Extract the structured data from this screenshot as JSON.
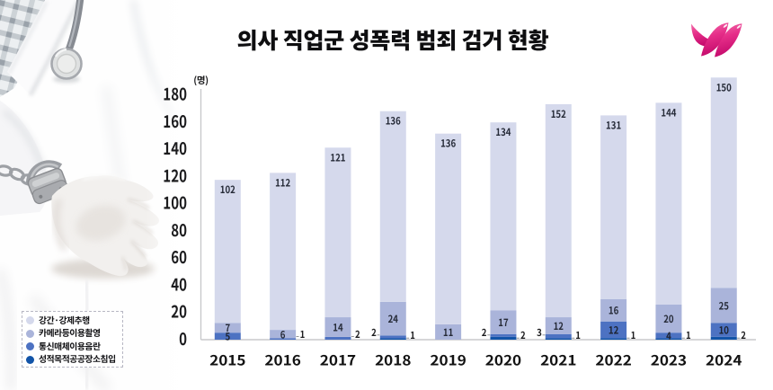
{
  "header": {
    "title": "의사 직업군 성폭력 범죄 검거 현황",
    "logo": {
      "name": "pink-wings-logo",
      "color_top": "#f473ae",
      "color_bottom": "#c9096e"
    }
  },
  "chart_data": {
    "type": "bar",
    "stacked": true,
    "title": "의사 직업군 성폭력 범죄 검거 현황",
    "unit_label": "(명)",
    "xlabel": "",
    "ylabel": "명",
    "ylim": [
      0,
      180
    ],
    "ytick_step": 20,
    "yticks": [
      0,
      20,
      40,
      60,
      80,
      100,
      120,
      140,
      160,
      180
    ],
    "grid": false,
    "legend_position": "bottom-left",
    "categories": [
      "2015",
      "2016",
      "2017",
      "2018",
      "2019",
      "2020",
      "2021",
      "2022",
      "2023",
      "2024"
    ],
    "series": [
      {
        "name": "강간·강제추행",
        "color": "#d5d9ec",
        "values": [
          102,
          112,
          121,
          136,
          136,
          134,
          152,
          131,
          144,
          150
        ]
      },
      {
        "name": "카메라등이용촬영",
        "color": "#aab4da",
        "values": [
          7,
          6,
          14,
          24,
          11,
          17,
          12,
          16,
          20,
          25
        ]
      },
      {
        "name": "통신매체이용음란",
        "color": "#4d72c2",
        "values": [
          5,
          1,
          2,
          2,
          0,
          2,
          3,
          12,
          4,
          10
        ]
      },
      {
        "name": "성적목적공공장소침입",
        "color": "#1254a8",
        "values": [
          0,
          0,
          0,
          1,
          0,
          2,
          1,
          1,
          1,
          2
        ]
      }
    ],
    "totals": [
      114,
      119,
      137,
      163,
      147,
      155,
      168,
      160,
      169,
      187
    ]
  }
}
